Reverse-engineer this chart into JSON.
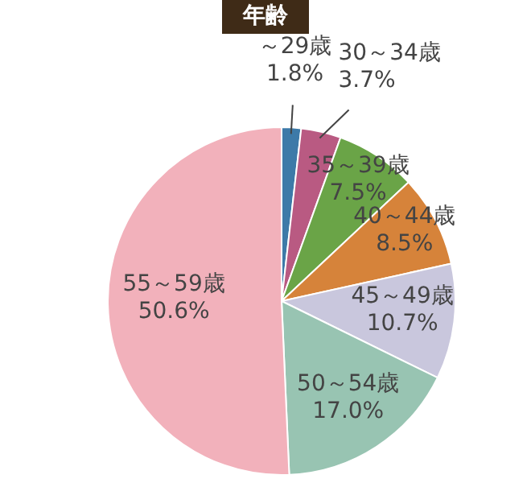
{
  "chart_data": {
    "type": "pie",
    "title": "年齢",
    "categories": [
      "～29歳",
      "30～34歳",
      "35～39歳",
      "40～44歳",
      "45～49歳",
      "50～54歳",
      "55～59歳"
    ],
    "values": [
      1.8,
      3.7,
      7.5,
      8.5,
      10.7,
      17.0,
      50.6
    ],
    "value_labels": [
      "1.8%",
      "3.7%",
      "7.5%",
      "8.5%",
      "10.7%",
      "17.0%",
      "50.6%"
    ],
    "colors": [
      "#3d7aa8",
      "#b95a82",
      "#6aa447",
      "#d6833a",
      "#c9c7dd",
      "#98c4b2",
      "#f2b1bb"
    ],
    "legend": false
  }
}
